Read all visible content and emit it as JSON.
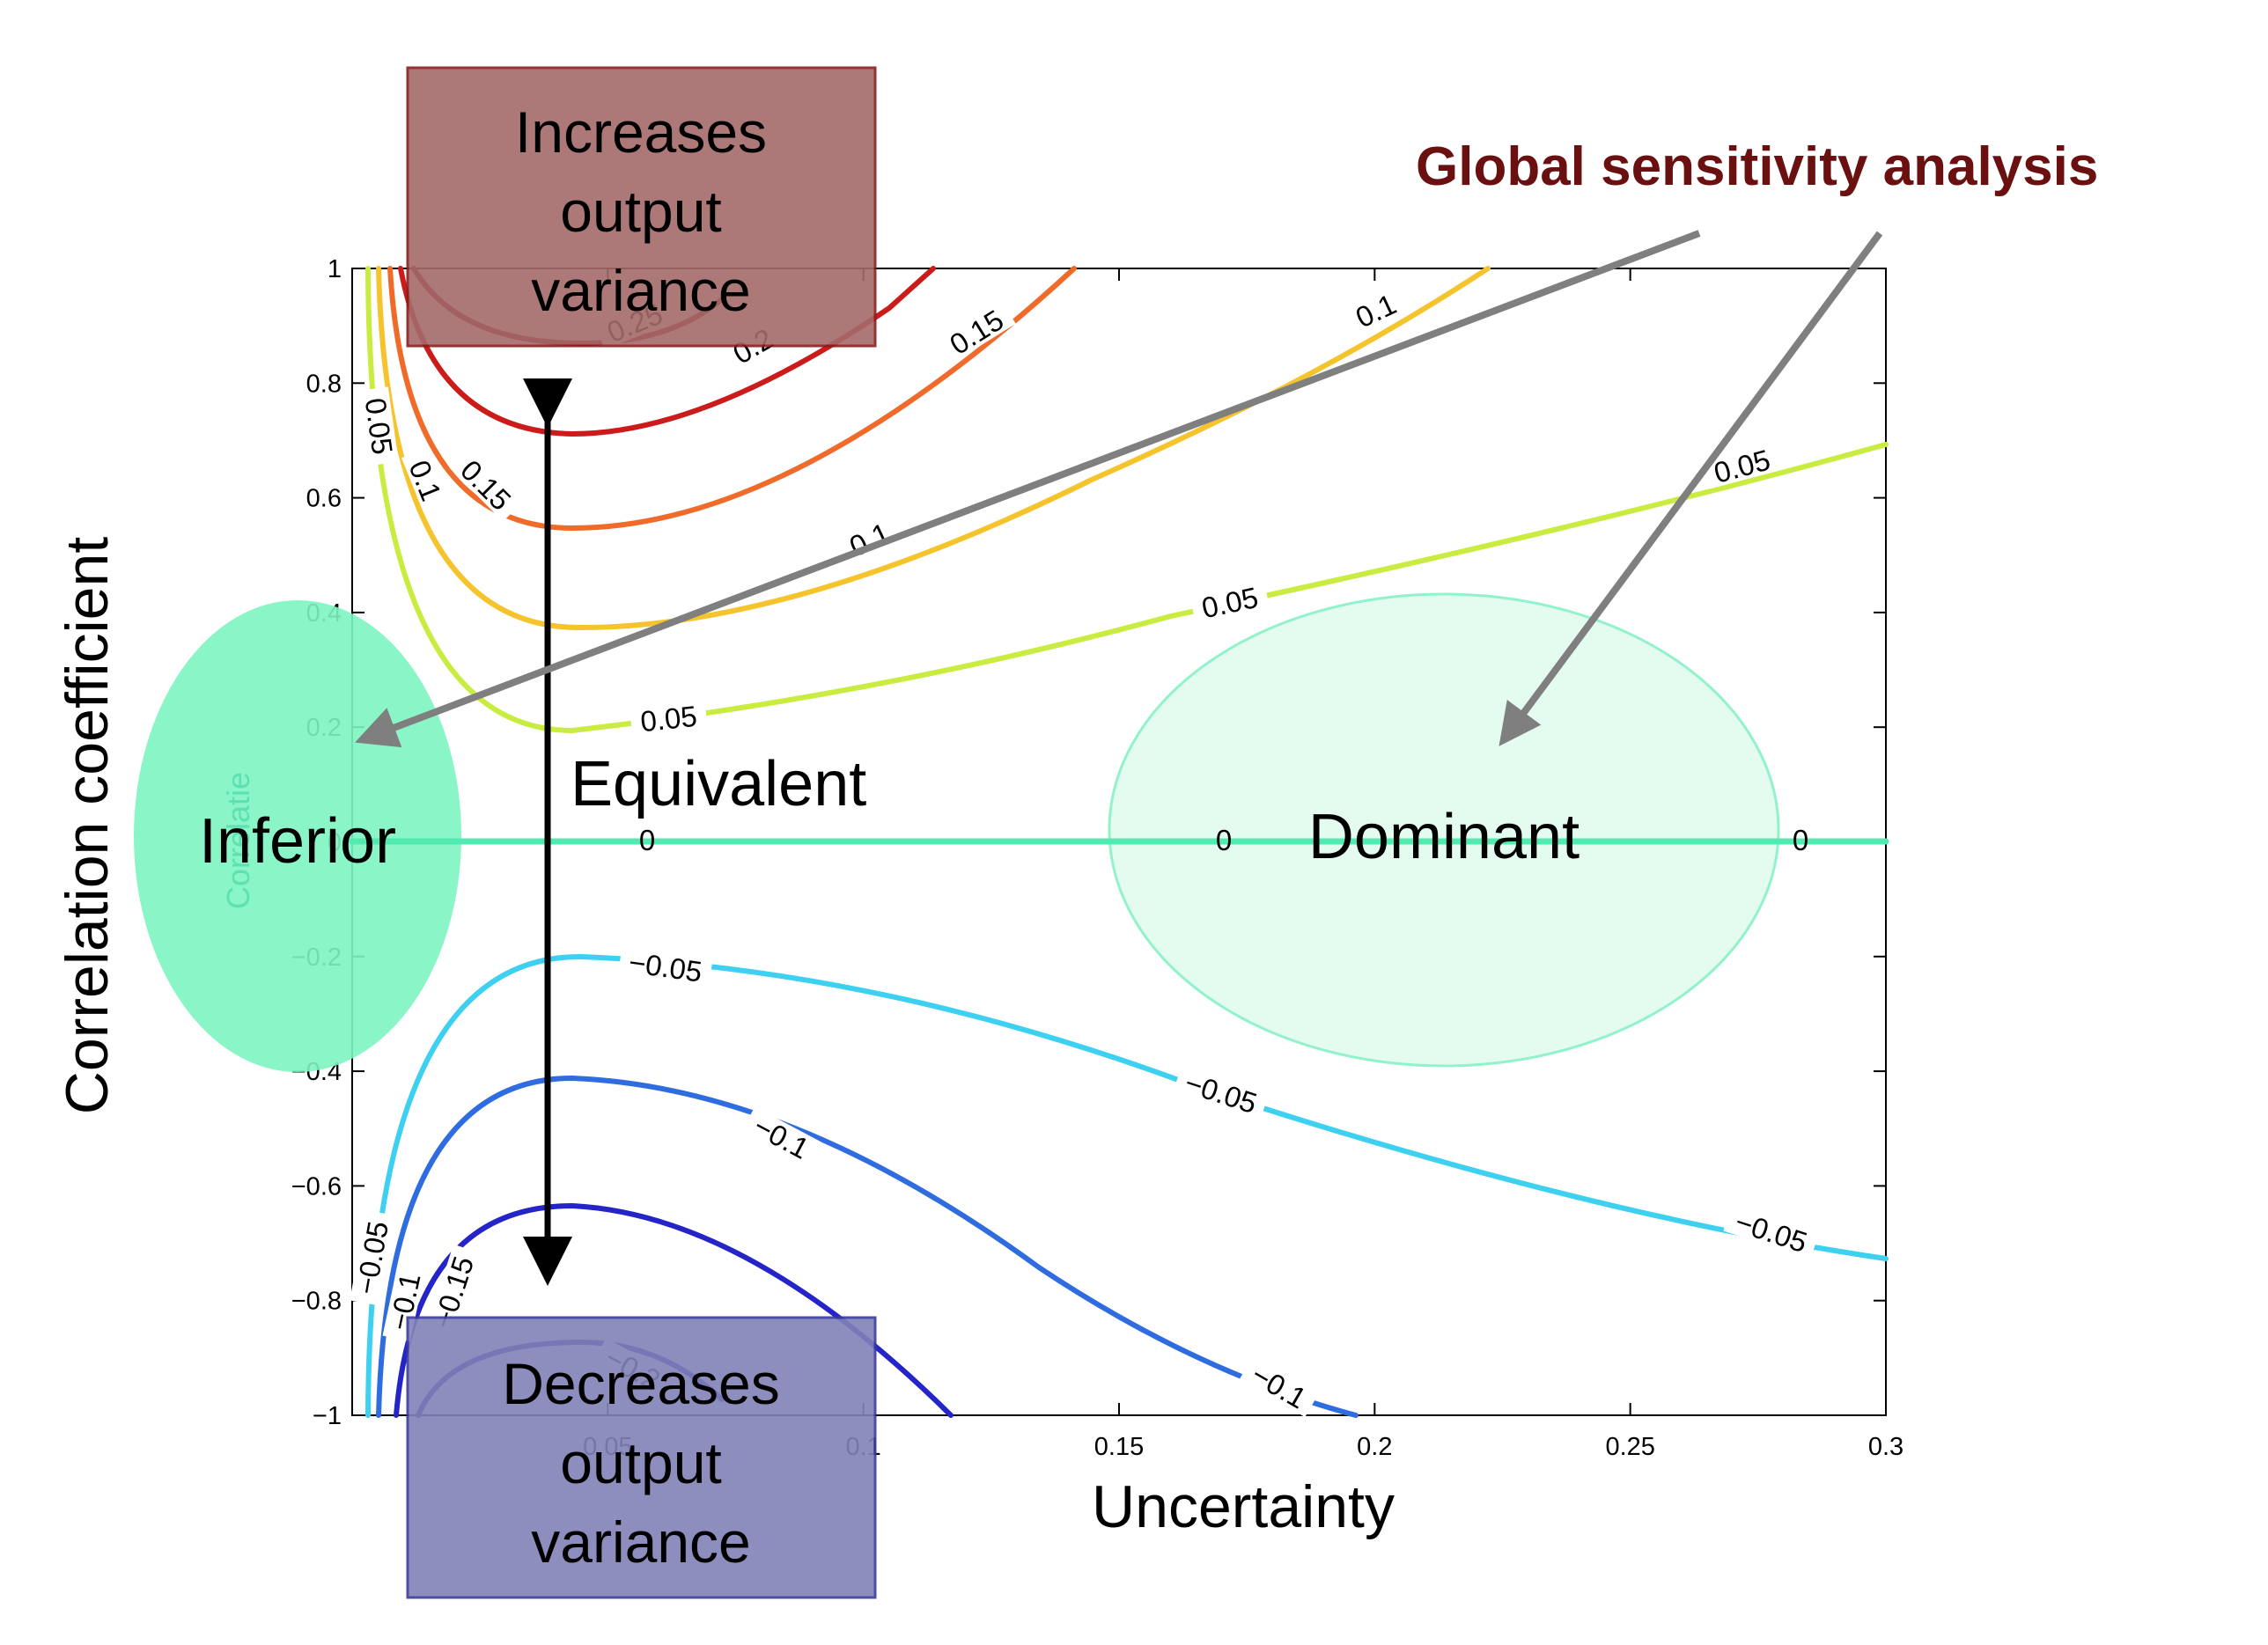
{
  "chart_data": {
    "type": "contour",
    "title": "",
    "xlabel": "Uncertainty",
    "ylabel": "Correlation coefficient",
    "ylabel_faint": "Correlatie",
    "xlim": [
      0,
      0.3
    ],
    "ylim": [
      -1,
      1
    ],
    "xticks": [
      0.05,
      0.1,
      0.15,
      0.2,
      0.25,
      0.3
    ],
    "xtick_labels": [
      "0.05",
      "0.1",
      "0.15",
      "0.2",
      "0.25",
      "0.3"
    ],
    "yticks": [
      1,
      0.8,
      0.6,
      0.4,
      0.2,
      0,
      -0.2,
      -0.4,
      -0.6,
      -0.8,
      -1
    ],
    "ytick_labels": [
      "1",
      "0.8",
      "0.6",
      "0.4",
      "0.2",
      "0",
      "−0.2",
      "−0.4",
      "−0.6",
      "−0.8",
      "−1"
    ],
    "levels": [
      {
        "value": 0.25,
        "color": "#8b0a12",
        "labels": [
          "0.25"
        ]
      },
      {
        "value": 0.2,
        "color": "#cc1b1b",
        "labels": [
          "0.2"
        ]
      },
      {
        "value": 0.15,
        "color": "#f06a2a",
        "labels": [
          "0.15",
          "0.15"
        ]
      },
      {
        "value": 0.1,
        "color": "#f5c42c",
        "labels": [
          "0.1",
          "0.1",
          "0.1"
        ]
      },
      {
        "value": 0.05,
        "color": "#c8ec40",
        "labels": [
          "0.05",
          "0.05",
          "0.05",
          "0.05"
        ]
      },
      {
        "value": 0,
        "color": "#52eab0",
        "labels": [
          "0",
          "0",
          "0"
        ]
      },
      {
        "value": -0.05,
        "color": "#3dd0f0",
        "labels": [
          "−0.05",
          "−0.05",
          "−0.05",
          "−0.05"
        ]
      },
      {
        "value": -0.1,
        "color": "#2e6ce0",
        "labels": [
          "−0.1",
          "−0.1",
          "−0.1"
        ]
      },
      {
        "value": -0.15,
        "color": "#2424c8",
        "labels": [
          "−0.15"
        ]
      },
      {
        "value": -0.2,
        "color": "#1a1aa8",
        "labels": [
          "−0.2"
        ]
      }
    ]
  },
  "annotations": {
    "increases": [
      "Increases",
      "output",
      "variance"
    ],
    "decreases": [
      "Decreases",
      "output",
      "variance"
    ],
    "equivalent": "Equivalent",
    "inferior": "Inferior",
    "dominant": "Dominant",
    "gsa": "Global sensitivity analysis"
  },
  "colors": {
    "increase_box_fill": "#a56a6a",
    "increase_box_border": "#8a1c1c",
    "decrease_box_fill": "#8282b8",
    "decrease_box_border": "#3a3aa0",
    "inferior_fill": "#7df5c2",
    "dominant_fill": "#e0fcee",
    "dominant_border": "#7ff0c4",
    "gsa_title": "#6b1010",
    "gsa_arrow": "#7f7f7f"
  }
}
